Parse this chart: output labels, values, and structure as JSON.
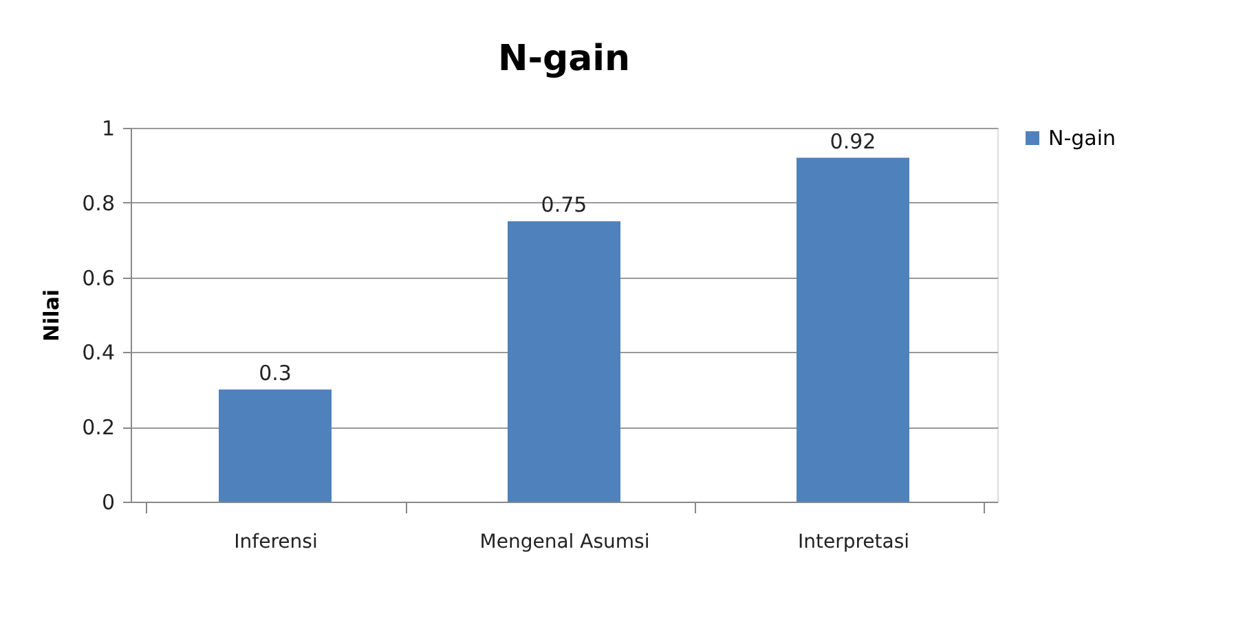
{
  "chart_data": {
    "type": "bar",
    "title": "N-gain",
    "ylabel": "Nilai",
    "categories": [
      "Inferensi",
      "Mengenal Asumsi",
      "Interpretasi"
    ],
    "series": [
      {
        "name": "N-gain",
        "color": "#4f81bd",
        "values": [
          0.3,
          0.75,
          0.92
        ]
      }
    ],
    "ylim": [
      0,
      1
    ],
    "yticks": [
      0,
      0.2,
      0.4,
      0.6,
      0.8,
      1
    ],
    "grid": "y",
    "legend": "right",
    "data_labels": true
  }
}
